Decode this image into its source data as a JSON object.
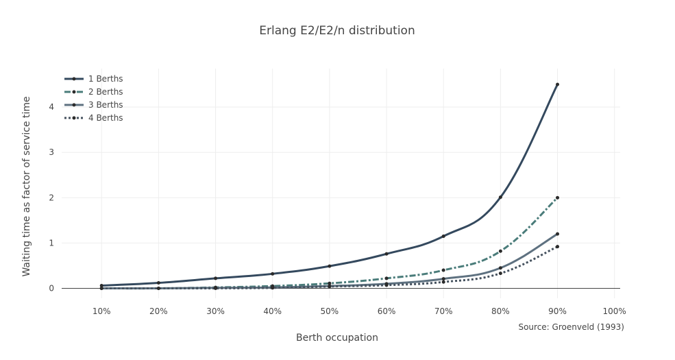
{
  "chart_data": {
    "type": "line",
    "title": "Erlang E2/E2/n distribution",
    "xlabel": "Berth occupation",
    "ylabel": "Waiting time as factor of service time",
    "annotation": "Source: Groenveld (1993)",
    "x": [
      0.1,
      0.2,
      0.3,
      0.4,
      0.5,
      0.6,
      0.7,
      0.8,
      0.9
    ],
    "x_ticks": [
      0.1,
      0.2,
      0.3,
      0.4,
      0.5,
      0.6,
      0.7,
      0.8,
      0.9,
      1.0
    ],
    "x_tick_labels": [
      "10%",
      "20%",
      "30%",
      "40%",
      "50%",
      "60%",
      "70%",
      "80%",
      "90%",
      "100%"
    ],
    "xlim": [
      0.03,
      1.01
    ],
    "y_ticks": [
      0,
      1,
      2,
      3,
      4
    ],
    "y_tick_labels": [
      "0",
      "1",
      "2",
      "3",
      "4"
    ],
    "ylim": [
      -0.22,
      4.85
    ],
    "grid": true,
    "legend_position": "top-left",
    "series": [
      {
        "name": "1 Berths",
        "values": [
          0.06,
          0.12,
          0.22,
          0.32,
          0.49,
          0.76,
          1.15,
          2.01,
          4.5
        ],
        "color": "#34495e",
        "dash": "solid",
        "width": 3
      },
      {
        "name": "2 Berths",
        "values": [
          0.0,
          0.0,
          0.02,
          0.05,
          0.11,
          0.22,
          0.4,
          0.82,
          2.0
        ],
        "color": "#4a7c7a",
        "dash": "dashdot",
        "width": 3
      },
      {
        "name": "3 Berths",
        "values": [
          0.0,
          0.0,
          0.01,
          0.02,
          0.05,
          0.1,
          0.21,
          0.45,
          1.2
        ],
        "color": "#5e7180",
        "dash": "solid",
        "width": 3
      },
      {
        "name": "4 Berths",
        "values": [
          0.0,
          0.0,
          0.0,
          0.01,
          0.04,
          0.07,
          0.14,
          0.33,
          0.92
        ],
        "color": "#45515e",
        "dash": "dot",
        "width": 3
      }
    ],
    "marker_color": "#2b2b2b"
  }
}
